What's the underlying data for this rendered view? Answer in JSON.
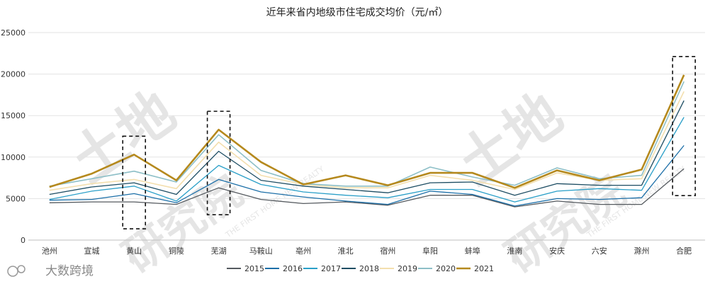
{
  "chart_data": {
    "type": "line",
    "title": "近年来省内地级市住宅成交均价（元/㎡）",
    "categories": [
      "池州",
      "宣城",
      "黄山",
      "铜陵",
      "芜湖",
      "马鞍山",
      "亳州",
      "淮北",
      "宿州",
      "阜阳",
      "蚌埠",
      "淮南",
      "安庆",
      "六安",
      "滁州",
      "合肥"
    ],
    "ylim": [
      0,
      25000
    ],
    "yticks": [
      0,
      5000,
      10000,
      15000,
      20000,
      25000
    ],
    "ytick_labels": [
      "0",
      "5000",
      "10000",
      "15000",
      "20000",
      "25000"
    ],
    "series": [
      {
        "name": "2015",
        "color": "#555a5f",
        "width": 1.3,
        "values": [
          4500,
          4600,
          4600,
          4300,
          6300,
          4900,
          4400,
          4600,
          4200,
          5400,
          5400,
          4000,
          4700,
          4300,
          4300,
          8600
        ]
      },
      {
        "name": "2016",
        "color": "#1c6fa8",
        "width": 1.3,
        "values": [
          4800,
          4900,
          5600,
          4500,
          7300,
          5800,
          5200,
          4700,
          4300,
          5900,
          5500,
          4100,
          5000,
          4900,
          5100,
          11400
        ]
      },
      {
        "name": "2017",
        "color": "#2a9fc8",
        "width": 1.3,
        "values": [
          4900,
          5900,
          6500,
          4700,
          9000,
          6700,
          5800,
          5400,
          5100,
          6100,
          6100,
          4600,
          5900,
          6200,
          6000,
          14800
        ]
      },
      {
        "name": "2018",
        "color": "#1d4d63",
        "width": 1.3,
        "values": [
          5500,
          6400,
          6900,
          5500,
          10700,
          7200,
          6500,
          6100,
          5700,
          6900,
          7000,
          5400,
          6800,
          6600,
          6600,
          16800
        ]
      },
      {
        "name": "2019",
        "color": "#f3dfae",
        "width": 1.6,
        "values": [
          6000,
          6800,
          7300,
          6200,
          11800,
          7800,
          6700,
          6300,
          6300,
          7800,
          7200,
          6100,
          8100,
          7200,
          7400,
          17900
        ]
      },
      {
        "name": "2020",
        "color": "#8dbfc7",
        "width": 1.6,
        "values": [
          6500,
          7400,
          8300,
          7000,
          12700,
          8400,
          6800,
          6500,
          6500,
          8800,
          7600,
          6600,
          8700,
          7400,
          7800,
          19100
        ]
      },
      {
        "name": "2021",
        "color": "#b5891d",
        "width": 2.6,
        "values": [
          6400,
          8000,
          10300,
          7200,
          13300,
          9400,
          6700,
          7800,
          6600,
          8100,
          8100,
          6300,
          8400,
          7200,
          8500,
          19900
        ]
      }
    ],
    "highlight_boxes": [
      "黄山",
      "芜湖",
      "合肥"
    ]
  },
  "watermarks": {
    "big_text": [
      "土地",
      "研究院"
    ],
    "side_text": "THE FIRST HOME NEW REALTY",
    "logo_text": "大数跨境"
  }
}
